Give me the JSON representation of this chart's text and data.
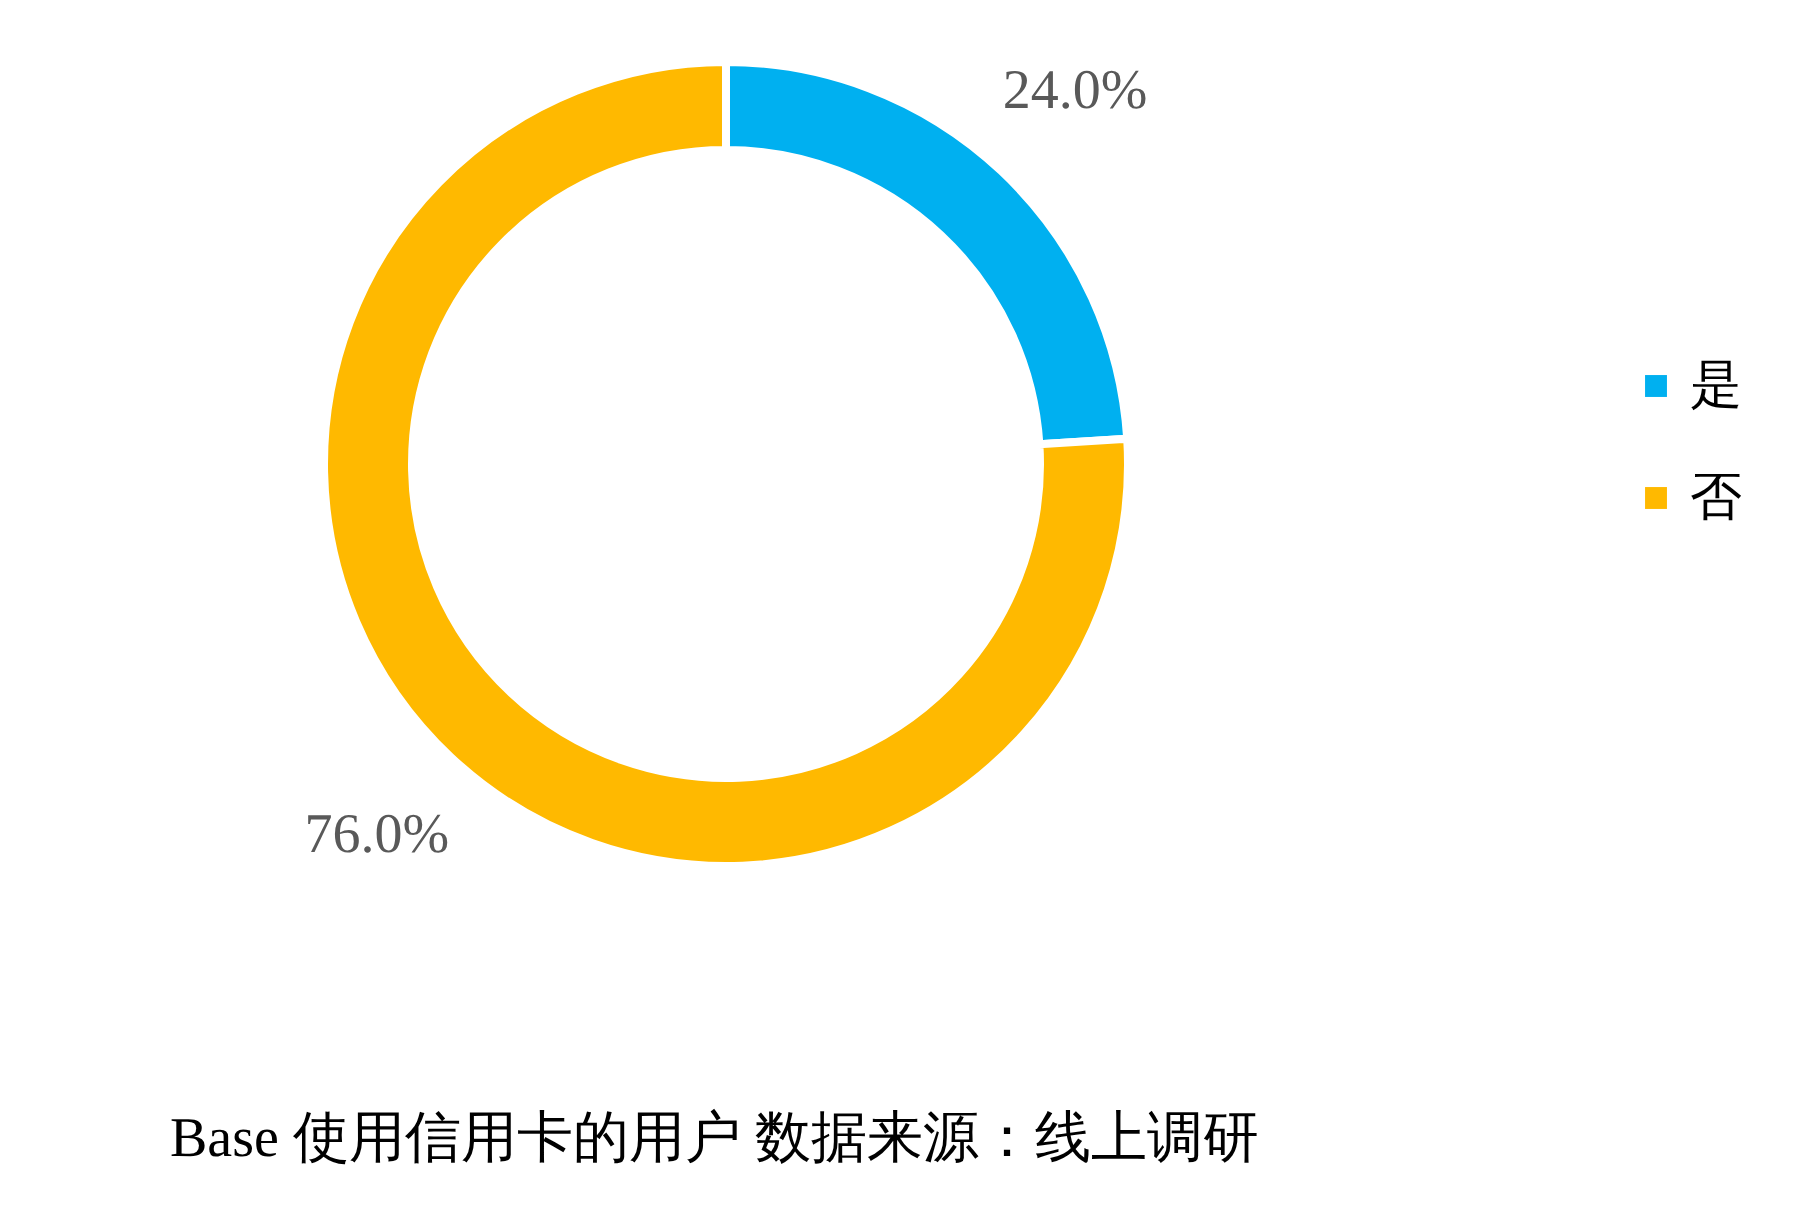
{
  "chart_data": {
    "type": "donut",
    "categories": [
      "是",
      "否"
    ],
    "values": [
      24.0,
      76.0
    ],
    "colors": [
      "#00b0f0",
      "#ffb900"
    ],
    "value_labels": [
      "24.0%",
      "76.0%"
    ],
    "legend": "right",
    "annotations": [
      "Base 使用信用卡的用户 数据来源：线上调研"
    ]
  }
}
